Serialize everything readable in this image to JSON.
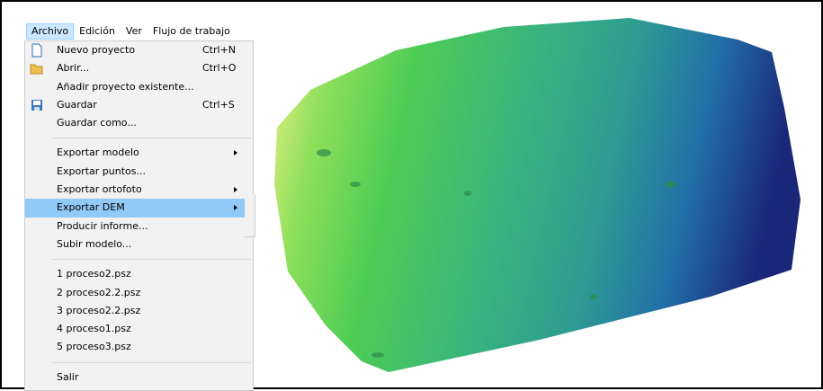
{
  "menubar": [
    {
      "label": "Archivo",
      "active": true
    },
    {
      "label": "Edición"
    },
    {
      "label": "Ver"
    },
    {
      "label": "Flujo de trabajo"
    }
  ],
  "menu": {
    "groups": [
      [
        {
          "label": "Nuevo proyecto",
          "shortcut": "Ctrl+N",
          "icon": "new"
        },
        {
          "label": "Abrir...",
          "shortcut": "Ctrl+O",
          "icon": "open"
        },
        {
          "label": "Añadir proyecto existente..."
        },
        {
          "label": "Guardar",
          "shortcut": "Ctrl+S",
          "icon": "save"
        },
        {
          "label": "Guardar como..."
        }
      ],
      [
        {
          "label": "Exportar modelo",
          "submenu": true
        },
        {
          "label": "Exportar puntos..."
        },
        {
          "label": "Exportar ortofoto",
          "submenu": true
        },
        {
          "label": "Exportar DEM",
          "submenu": true,
          "highlighted": true
        },
        {
          "label": "Producir informe..."
        },
        {
          "label": "Subir modelo..."
        }
      ],
      [
        {
          "label": "1 proceso2.psz"
        },
        {
          "label": "2 proceso2.2.psz"
        },
        {
          "label": "3 proceso2.2.psz"
        },
        {
          "label": "4 proceso1.psz"
        },
        {
          "label": "5 proceso3.psz"
        }
      ],
      [
        {
          "label": "Salir"
        }
      ]
    ]
  }
}
